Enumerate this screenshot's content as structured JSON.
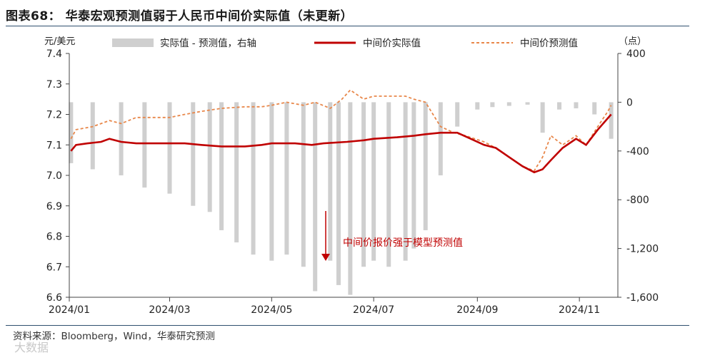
{
  "title": "图表68： 华泰宏观预测值弱于人民币中间价实际值（未更新）",
  "source": "资料来源：Bloomberg，Wind，华泰研究预测",
  "watermark": "大数据",
  "colors": {
    "actual": "#c00000",
    "predicted": "#e8874a",
    "diff": "#cfcfcf",
    "annotation": "#c00000",
    "rule": "#2f4f6f"
  },
  "chart_data": {
    "type": "line",
    "left_axis_label": "元/美元",
    "right_axis_label": "（点）",
    "y_left_range": [
      6.6,
      7.4
    ],
    "y_left_ticks": [
      "6.6",
      "6.7",
      "6.8",
      "6.9",
      "7.0",
      "7.1",
      "7.2",
      "7.3",
      "7.4"
    ],
    "y_right_range": [
      -1600,
      400
    ],
    "y_right_ticks": [
      "400",
      "0",
      "-400",
      "-800",
      "-1,200",
      "-1,600"
    ],
    "x_tick_labels": [
      "2024/01",
      "2024/03",
      "2024/05",
      "2024/07",
      "2024/09",
      "2024/11"
    ],
    "x_ticks": [
      {
        "date": "2024-01-01",
        "label": "2024/01"
      },
      {
        "date": "2024-03-01",
        "label": "2024/03"
      },
      {
        "date": "2024-05-01",
        "label": "2024/05"
      },
      {
        "date": "2024-07-01",
        "label": "2024/07"
      },
      {
        "date": "2024-09-01",
        "label": "2024/09"
      },
      {
        "date": "2024-11-01",
        "label": "2024/11"
      }
    ],
    "legend": [
      "实际值 - 预测值，右轴",
      "中间价实际值",
      "中间价预测值"
    ],
    "annotation": "中间价报价强于模型预测值",
    "series": [
      {
        "name": "中间价实际值",
        "axis": "left",
        "points": [
          [
            "2024-01-02",
            7.08
          ],
          [
            "2024-01-05",
            7.1
          ],
          [
            "2024-01-12",
            7.105
          ],
          [
            "2024-01-20",
            7.11
          ],
          [
            "2024-01-25",
            7.12
          ],
          [
            "2024-02-01",
            7.11
          ],
          [
            "2024-02-10",
            7.105
          ],
          [
            "2024-02-20",
            7.105
          ],
          [
            "2024-03-01",
            7.105
          ],
          [
            "2024-03-10",
            7.105
          ],
          [
            "2024-03-20",
            7.1
          ],
          [
            "2024-04-01",
            7.095
          ],
          [
            "2024-04-15",
            7.095
          ],
          [
            "2024-04-25",
            7.1
          ],
          [
            "2024-05-01",
            7.105
          ],
          [
            "2024-05-15",
            7.105
          ],
          [
            "2024-05-25",
            7.1
          ],
          [
            "2024-06-01",
            7.105
          ],
          [
            "2024-06-15",
            7.11
          ],
          [
            "2024-06-25",
            7.115
          ],
          [
            "2024-07-01",
            7.12
          ],
          [
            "2024-07-15",
            7.125
          ],
          [
            "2024-07-25",
            7.13
          ],
          [
            "2024-08-01",
            7.135
          ],
          [
            "2024-08-10",
            7.14
          ],
          [
            "2024-08-20",
            7.14
          ],
          [
            "2024-08-28",
            7.12
          ],
          [
            "2024-09-05",
            7.1
          ],
          [
            "2024-09-12",
            7.09
          ],
          [
            "2024-09-20",
            7.06
          ],
          [
            "2024-09-28",
            7.03
          ],
          [
            "2024-10-05",
            7.01
          ],
          [
            "2024-10-10",
            7.02
          ],
          [
            "2024-10-15",
            7.05
          ],
          [
            "2024-10-22",
            7.09
          ],
          [
            "2024-10-30",
            7.12
          ],
          [
            "2024-11-05",
            7.1
          ],
          [
            "2024-11-12",
            7.15
          ],
          [
            "2024-11-20",
            7.2
          ]
        ]
      },
      {
        "name": "中间价预测值",
        "axis": "left",
        "points": [
          [
            "2024-01-02",
            7.12
          ],
          [
            "2024-01-05",
            7.15
          ],
          [
            "2024-01-15",
            7.16
          ],
          [
            "2024-01-25",
            7.18
          ],
          [
            "2024-02-01",
            7.17
          ],
          [
            "2024-02-10",
            7.19
          ],
          [
            "2024-02-20",
            7.19
          ],
          [
            "2024-03-01",
            7.19
          ],
          [
            "2024-03-10",
            7.2
          ],
          [
            "2024-03-20",
            7.21
          ],
          [
            "2024-04-01",
            7.22
          ],
          [
            "2024-04-15",
            7.225
          ],
          [
            "2024-04-25",
            7.225
          ],
          [
            "2024-05-01",
            7.23
          ],
          [
            "2024-05-10",
            7.24
          ],
          [
            "2024-05-20",
            7.23
          ],
          [
            "2024-05-27",
            7.24
          ],
          [
            "2024-06-05",
            7.22
          ],
          [
            "2024-06-12",
            7.25
          ],
          [
            "2024-06-17",
            7.28
          ],
          [
            "2024-06-25",
            7.25
          ],
          [
            "2024-07-01",
            7.26
          ],
          [
            "2024-07-10",
            7.26
          ],
          [
            "2024-07-20",
            7.26
          ],
          [
            "2024-07-25",
            7.25
          ],
          [
            "2024-08-01",
            7.24
          ],
          [
            "2024-08-10",
            7.16
          ],
          [
            "2024-08-18",
            7.14
          ],
          [
            "2024-08-25",
            7.13
          ],
          [
            "2024-09-05",
            7.11
          ],
          [
            "2024-09-12",
            7.09
          ],
          [
            "2024-09-20",
            7.06
          ],
          [
            "2024-09-28",
            7.03
          ],
          [
            "2024-10-05",
            7.015
          ],
          [
            "2024-10-10",
            7.06
          ],
          [
            "2024-10-15",
            7.13
          ],
          [
            "2024-10-22",
            7.1
          ],
          [
            "2024-10-30",
            7.13
          ],
          [
            "2024-11-05",
            7.1
          ],
          [
            "2024-11-12",
            7.16
          ],
          [
            "2024-11-18",
            7.21
          ],
          [
            "2024-11-20",
            7.23
          ]
        ]
      },
      {
        "name": "实际值 - 预测值，右轴",
        "type": "bar",
        "axis": "right",
        "points": [
          [
            "2024-01-02",
            -500
          ],
          [
            "2024-01-15",
            -550
          ],
          [
            "2024-02-01",
            -600
          ],
          [
            "2024-02-15",
            -700
          ],
          [
            "2024-03-01",
            -750
          ],
          [
            "2024-03-15",
            -850
          ],
          [
            "2024-03-25",
            -900
          ],
          [
            "2024-04-01",
            -1050
          ],
          [
            "2024-04-10",
            -1150
          ],
          [
            "2024-04-20",
            -1250
          ],
          [
            "2024-05-01",
            -1300
          ],
          [
            "2024-05-10",
            -1250
          ],
          [
            "2024-05-20",
            -1350
          ],
          [
            "2024-05-27",
            -1550
          ],
          [
            "2024-06-05",
            -1300
          ],
          [
            "2024-06-10",
            -1500
          ],
          [
            "2024-06-17",
            -1580
          ],
          [
            "2024-06-25",
            -1350
          ],
          [
            "2024-07-01",
            -1300
          ],
          [
            "2024-07-10",
            -1350
          ],
          [
            "2024-07-20",
            -1300
          ],
          [
            "2024-07-25",
            -1200
          ],
          [
            "2024-08-01",
            -1050
          ],
          [
            "2024-08-10",
            -600
          ],
          [
            "2024-08-20",
            -200
          ],
          [
            "2024-09-01",
            -60
          ],
          [
            "2024-09-10",
            -40
          ],
          [
            "2024-09-20",
            -30
          ],
          [
            "2024-10-01",
            -20
          ],
          [
            "2024-10-10",
            -250
          ],
          [
            "2024-10-20",
            -60
          ],
          [
            "2024-10-30",
            -50
          ],
          [
            "2024-11-10",
            -100
          ],
          [
            "2024-11-20",
            -300
          ]
        ]
      }
    ]
  }
}
